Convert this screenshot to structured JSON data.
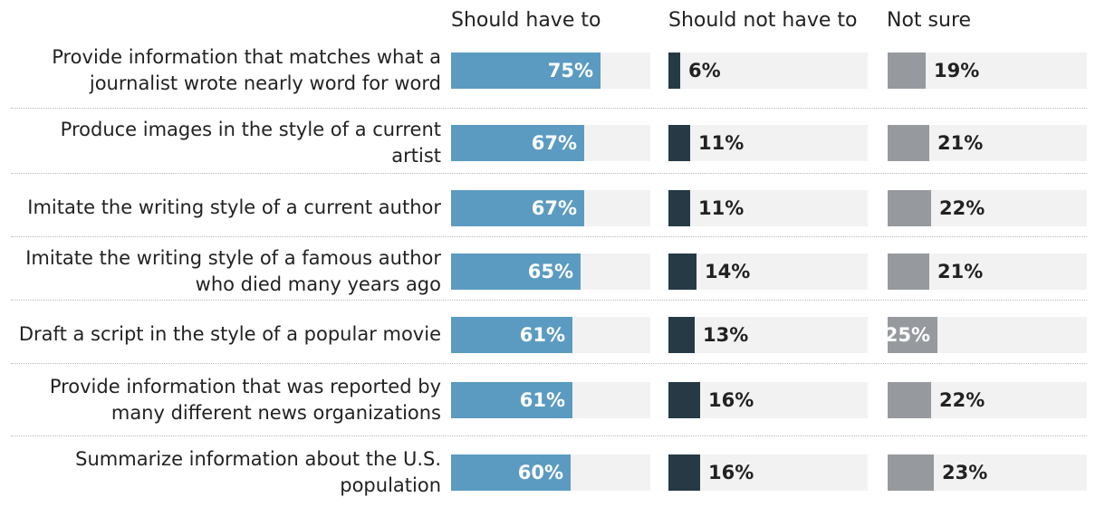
{
  "chart_data": {
    "type": "bar",
    "columns": [
      "Should have to",
      "Should not have to",
      "Not sure"
    ],
    "colors": [
      "#5b9bc1",
      "#263a46",
      "#969a9e"
    ],
    "track_color": "#f2f2f2",
    "xlim": [
      0,
      100
    ],
    "rows": [
      {
        "label": "Provide information that matches what a journalist wrote nearly word for word",
        "values": [
          75,
          6,
          19
        ],
        "display": [
          "75%",
          "6%",
          "19%"
        ]
      },
      {
        "label": "Produce images in the style of a current artist",
        "values": [
          67,
          11,
          21
        ],
        "display": [
          "67%",
          "11%",
          "21%"
        ]
      },
      {
        "label": "Imitate the writing style of a current author",
        "values": [
          67,
          11,
          22
        ],
        "display": [
          "67%",
          "11%",
          "22%"
        ]
      },
      {
        "label": "Imitate the writing style of a famous author who died many years ago",
        "values": [
          65,
          14,
          21
        ],
        "display": [
          "65%",
          "14%",
          "21%"
        ]
      },
      {
        "label": "Draft a script in the style of a popular movie",
        "values": [
          61,
          13,
          25
        ],
        "display": [
          "61%",
          "13%",
          "25%"
        ]
      },
      {
        "label": "Provide information that was reported by many different news organizations",
        "values": [
          61,
          16,
          22
        ],
        "display": [
          "61%",
          "16%",
          "22%"
        ]
      },
      {
        "label": "Summarize information about the U.S. population",
        "values": [
          60,
          16,
          23
        ],
        "display": [
          "60%",
          "16%",
          "23%"
        ]
      }
    ]
  }
}
